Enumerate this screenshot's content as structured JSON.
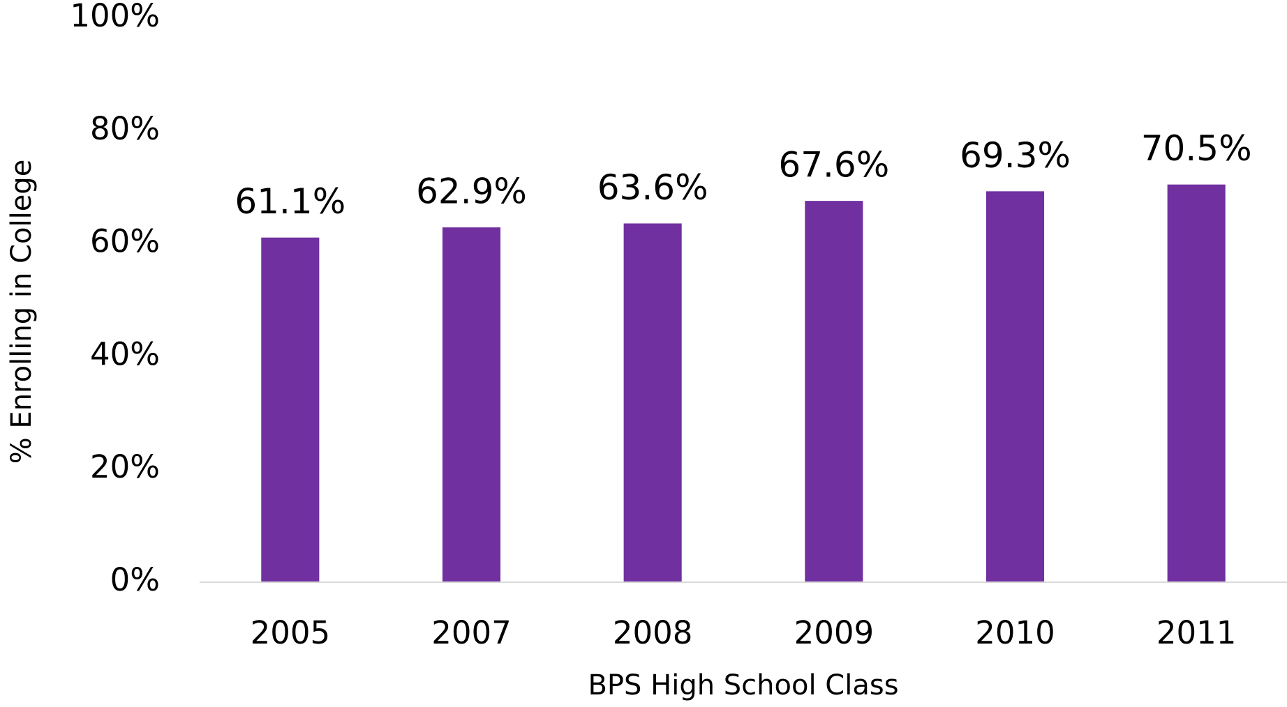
{
  "chart_data": {
    "type": "bar",
    "x_label": "BPS High School Class",
    "y_label": "% Enrolling in College",
    "categories": [
      "2005",
      "2007",
      "2008",
      "2009",
      "2010",
      "2011"
    ],
    "values": [
      61.1,
      62.9,
      63.6,
      67.6,
      69.3,
      70.5
    ],
    "value_labels": [
      "61.1%",
      "62.9%",
      "63.6%",
      "67.6%",
      "69.3%",
      "70.5%"
    ],
    "color": "#7030a0",
    "ylim": [
      0,
      100
    ],
    "yticks": [
      {
        "value": 0,
        "label": "0%"
      },
      {
        "value": 20,
        "label": "20%"
      },
      {
        "value": 40,
        "label": "40%"
      },
      {
        "value": 60,
        "label": "60%"
      },
      {
        "value": 80,
        "label": "80%"
      },
      {
        "value": 100,
        "label": "100%"
      }
    ],
    "grid": false
  }
}
